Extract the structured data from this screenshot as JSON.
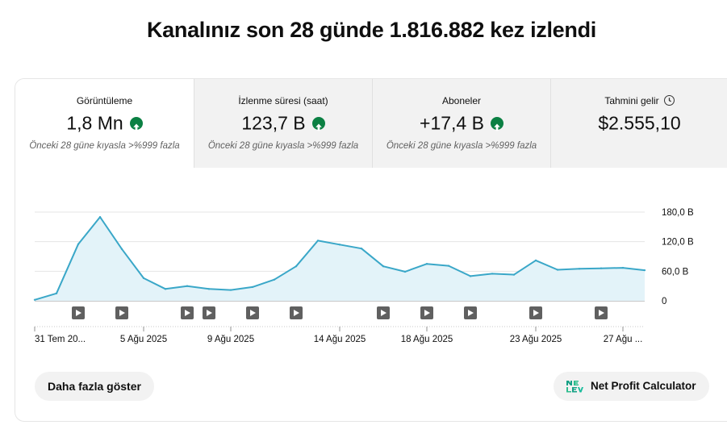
{
  "headline": "Kanalınız son 28 günde 1.816.882 kez izlendi",
  "metrics": [
    {
      "label": "Görüntüleme",
      "value": "1,8 Mn",
      "trend_icon": "arrow-up-circle-icon",
      "compare": "Önceki 28 güne kıyasla >%999 fazla"
    },
    {
      "label": "İzlenme süresi (saat)",
      "value": "123,7 B",
      "trend_icon": "arrow-up-circle-icon",
      "compare": "Önceki 28 güne kıyasla >%999 fazla"
    },
    {
      "label": "Aboneler",
      "value": "+17,4 B",
      "trend_icon": "arrow-up-circle-icon",
      "compare": "Önceki 28 güne kıyasla >%999 fazla"
    },
    {
      "label": "Tahmini gelir",
      "value": "$2.555,10",
      "info_icon": "clock-icon"
    }
  ],
  "colors": {
    "line": "#3aa7c8",
    "area": "#e3f3f9",
    "trend_up": "#0b8043",
    "selected_tab": "#ffffff",
    "tab_bg": "#f2f2f2"
  },
  "chart_data": {
    "type": "area",
    "x_ticks": [
      "31 Tem 20...",
      "5 Ağu 2025",
      "9 Ağu 2025",
      "14 Ağu 2025",
      "18 Ağu 2025",
      "23 Ağu 2025",
      "27 Ağu ..."
    ],
    "y_ticks": [
      "180,0 B",
      "120,0 B",
      "60,0 B",
      "0"
    ],
    "ylim": [
      0,
      180000
    ],
    "x": [
      "31 Tem",
      "1 Ağu",
      "2 Ağu",
      "3 Ağu",
      "4 Ağu",
      "5 Ağu",
      "6 Ağu",
      "7 Ağu",
      "8 Ağu",
      "9 Ağu",
      "10 Ağu",
      "11 Ağu",
      "12 Ağu",
      "13 Ağu",
      "14 Ağu",
      "15 Ağu",
      "16 Ağu",
      "17 Ağu",
      "18 Ağu",
      "19 Ağu",
      "20 Ağu",
      "21 Ağu",
      "22 Ağu",
      "23 Ağu",
      "24 Ağu",
      "25 Ağu",
      "26 Ağu",
      "27 Ağu",
      "28 Ağu"
    ],
    "values": [
      2000,
      15000,
      115000,
      170000,
      105000,
      46000,
      24000,
      30000,
      24000,
      22000,
      28000,
      43000,
      70000,
      122000,
      114000,
      106000,
      70000,
      59000,
      75000,
      71000,
      50000,
      55000,
      53000,
      82000,
      63000,
      65000,
      66000,
      67000,
      62000
    ],
    "video_markers": [
      "2 Ağu",
      "4 Ağu",
      "7 Ağu",
      "8 Ağu",
      "10 Ağu",
      "12 Ağu",
      "16 Ağu",
      "18 Ağu",
      "20 Ağu",
      "23 Ağu",
      "26 Ağu"
    ],
    "grid": true,
    "legend": "none"
  },
  "buttons": {
    "more": "Daha fazla göster",
    "net_profit": "Net Profit Calculator"
  }
}
